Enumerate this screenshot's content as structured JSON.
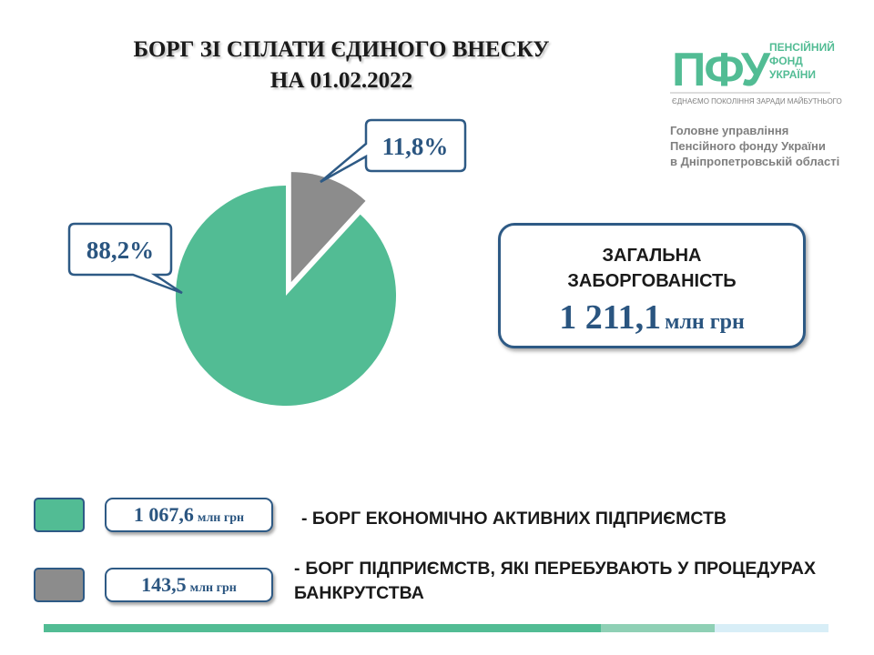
{
  "title": {
    "line1": "БОРГ ЗІ СПЛАТИ ЄДИНОГО ВНЕСКУ",
    "line2": "НА 01.02.2022"
  },
  "logo": {
    "mark": "ПФУ",
    "name_line1": "ПЕНСІЙНИЙ",
    "name_line2": "ФОНД",
    "name_line3": "УКРАЇНИ",
    "slogan": "ЄДНАЄМО ПОКОЛІННЯ ЗАРАДИ МАЙБУТНЬОГО"
  },
  "organization": {
    "line1": "Головне управління",
    "line2": "Пенсійного фонду України",
    "line3": "в Дніпропетровській області"
  },
  "total": {
    "label_line1": "ЗАГАЛЬНА",
    "label_line2": "ЗАБОРГОВАНІСТЬ",
    "value": "1 211,1",
    "unit": "млн грн"
  },
  "legend": [
    {
      "value": "1 067,6",
      "unit": "млн грн",
      "text": "- БОРГ ЕКОНОМІЧНО АКТИВНИХ ПІДПРИЄМСТВ"
    },
    {
      "value": "143,5",
      "unit": "млн грн",
      "text": "- БОРГ ПІДПРИЄМСТВ, ЯКІ ПЕРЕБУВАЮТЬ У ПРОЦЕДУРАХ БАНКРУТСТВА"
    }
  ],
  "colors": {
    "green": "#52bc94",
    "gray": "#8c8c8c",
    "navy": "#2e5a85"
  },
  "chart_data": {
    "type": "pie",
    "slices": [
      {
        "label": "88,2%",
        "value": 88.2,
        "amount": 1067.6,
        "color": "#52bc94"
      },
      {
        "label": "11,8%",
        "value": 11.8,
        "amount": 143.5,
        "color": "#8c8c8c",
        "exploded": true
      }
    ],
    "legend": "bottom"
  }
}
